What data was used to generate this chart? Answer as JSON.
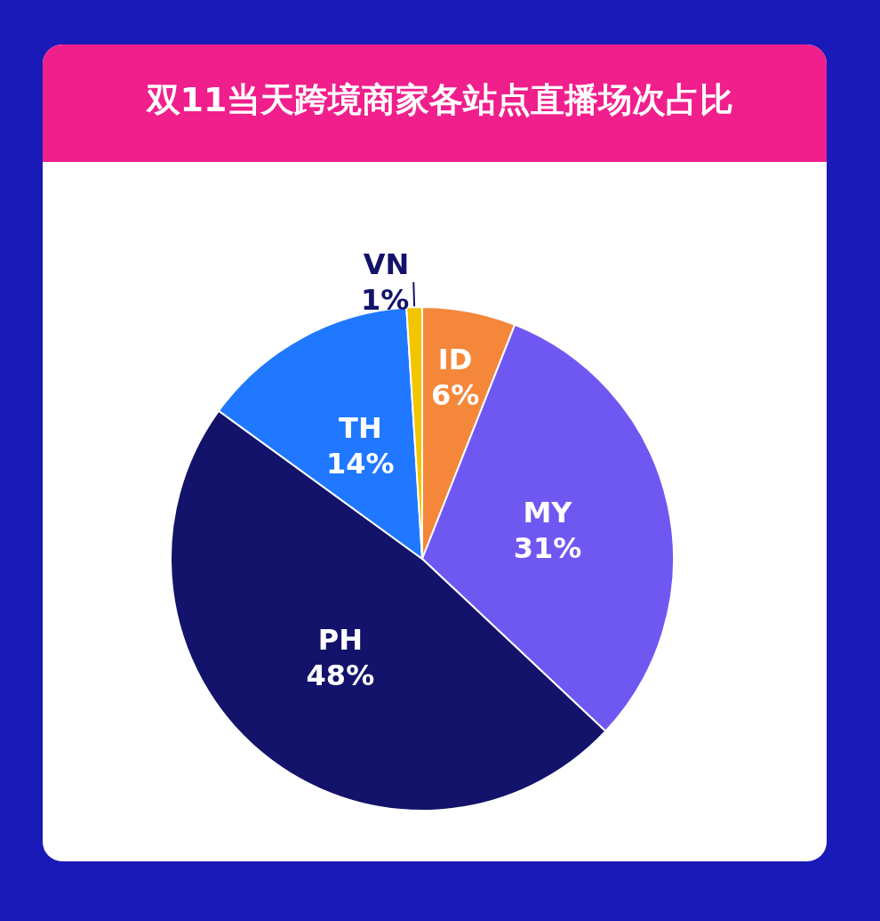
{
  "chart_data": {
    "type": "pie",
    "title": "双11当天跨境商家各站点直播场次占比",
    "categories": [
      "ID",
      "MY",
      "PH",
      "TH",
      "VN"
    ],
    "values": [
      6,
      31,
      48,
      14,
      1
    ],
    "colors": [
      "#f5873a",
      "#6f58f2",
      "#13136b",
      "#1f78ff",
      "#f2c500"
    ],
    "value_labels": [
      "6%",
      "31%",
      "48%",
      "14%",
      "1%"
    ],
    "legend": false
  }
}
